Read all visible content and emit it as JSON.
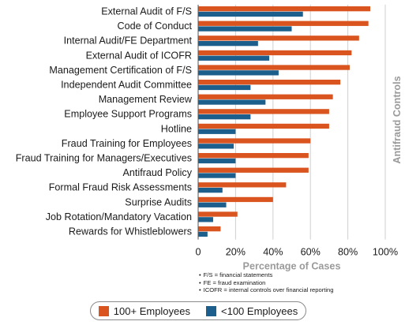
{
  "chart_data": {
    "type": "bar",
    "orientation": "horizontal",
    "categories": [
      "External Audit of F/S",
      "Code of Conduct",
      "Internal Audit/FE Department",
      "External Audit of ICOFR",
      "Management Certification of F/S",
      "Independent Audit Committee",
      "Management Review",
      "Employee Support Programs",
      "Hotline",
      "Fraud Training for Employees",
      "Fraud Training for Managers/Executives",
      "Antifraud Policy",
      "Formal Fraud Risk Assessments",
      "Surprise Audits",
      "Job Rotation/Mandatory Vacation",
      "Rewards for Whistleblowers"
    ],
    "series": [
      {
        "name": "100+ Employees",
        "color": "#d9541e",
        "values": [
          92,
          91,
          86,
          82,
          81,
          76,
          72,
          70,
          70,
          60,
          59,
          59,
          47,
          40,
          21,
          12
        ]
      },
      {
        "name": "<100 Employees",
        "color": "#1c5f8c",
        "values": [
          56,
          50,
          32,
          38,
          43,
          28,
          36,
          28,
          20,
          19,
          20,
          20,
          13,
          15,
          8,
          5
        ]
      }
    ],
    "xlabel": "Percentage of Cases",
    "side_title": "Antifraud Controls",
    "xlim": [
      0,
      100
    ],
    "x_ticks": [
      "0",
      "20%",
      "40%",
      "60%",
      "80%",
      "100%"
    ],
    "grid": true,
    "legend_position": "bottom",
    "notes": [
      "F/S = financial statements",
      "FE = fraud examination",
      "ICOFR = internal controls over financial reporting"
    ]
  }
}
